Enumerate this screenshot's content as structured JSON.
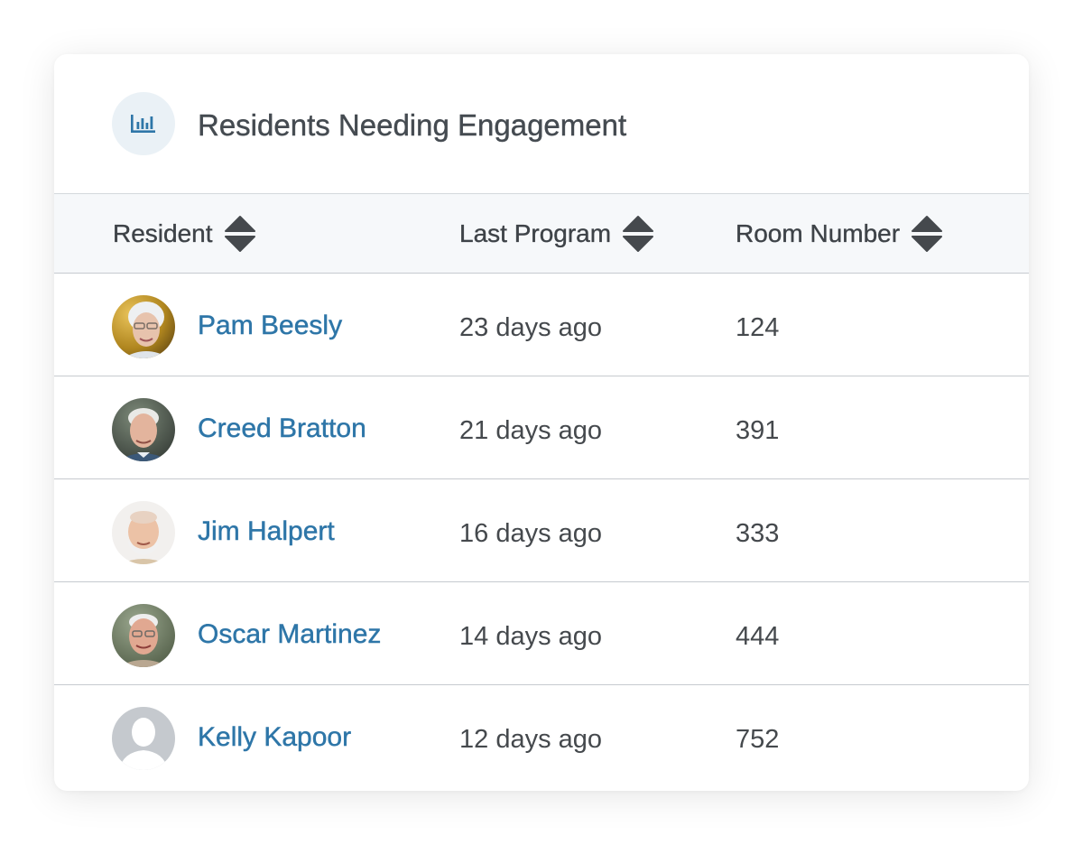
{
  "title": "Residents Needing Engagement",
  "header_icon": "bar-chart-icon",
  "columns": {
    "resident": "Resident",
    "last_program": "Last Program",
    "room_number": "Room Number"
  },
  "sort_icon": "sort-up-down-icon",
  "rows": [
    {
      "name": "Pam Beesly",
      "last_program": "23 days ago",
      "room": "124",
      "avatar": "photo"
    },
    {
      "name": "Creed Bratton",
      "last_program": "21 days ago",
      "room": "391",
      "avatar": "photo"
    },
    {
      "name": "Jim Halpert",
      "last_program": "16 days ago",
      "room": "333",
      "avatar": "photo"
    },
    {
      "name": "Oscar Martinez",
      "last_program": "14 days ago",
      "room": "444",
      "avatar": "photo"
    },
    {
      "name": "Kelly Kapoor",
      "last_program": "12 days ago",
      "room": "752",
      "avatar": "placeholder-person"
    }
  ],
  "colors": {
    "accent": "#2e76a8",
    "icon_bg": "#eaf1f6",
    "header_bg": "#f6f8fa",
    "text": "#45494d"
  }
}
